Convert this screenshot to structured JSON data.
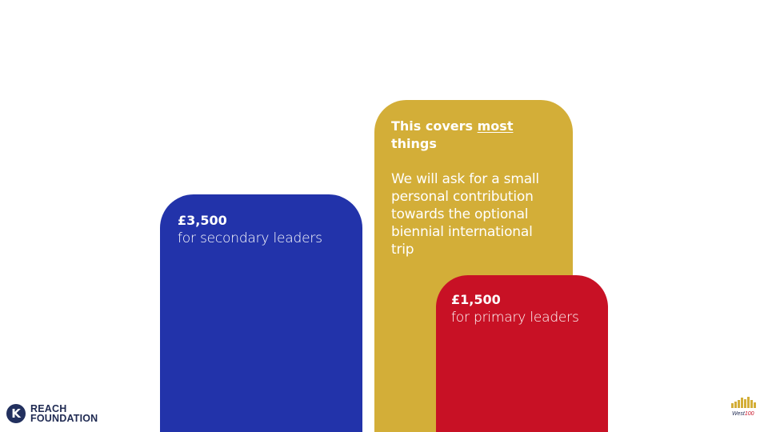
{
  "cards": {
    "secondary": {
      "amount": "£3,500",
      "description": "for secondary leaders",
      "color": "#2233AA"
    },
    "coverage": {
      "heading_before": "This covers ",
      "heading_emphasis": "most",
      "heading_after": " things",
      "body": "We will ask for a small personal contribution towards the optional biennial international trip",
      "color": "#D3AE38"
    },
    "primary": {
      "amount": "£1,500",
      "description": "for primary leaders",
      "color": "#C81125"
    }
  },
  "logos": {
    "reach": {
      "mark": "K",
      "line1": "REACH",
      "line2": "FOUNDATION"
    },
    "west100": {
      "text_prefix": "West",
      "text_number": "100"
    }
  }
}
